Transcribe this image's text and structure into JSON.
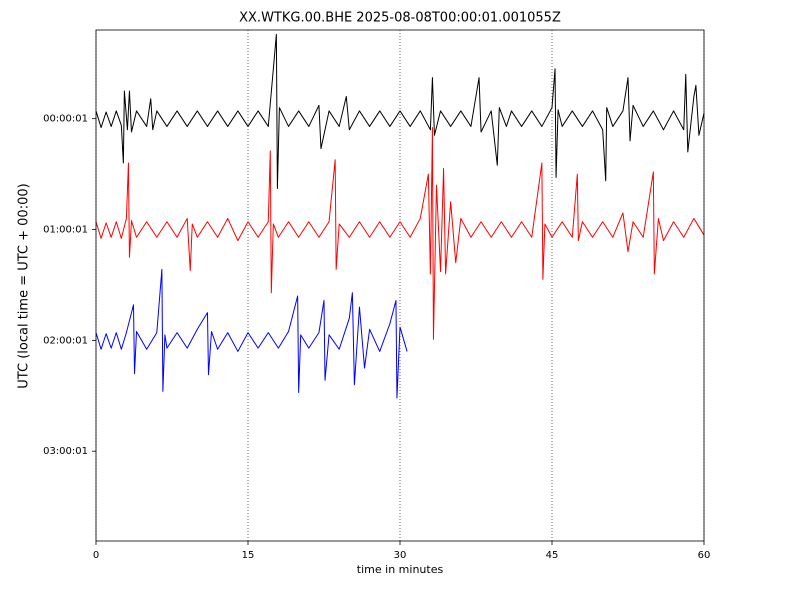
{
  "chart_data": {
    "type": "dayplot",
    "title": "XX.WTKG.00.BHE 2025-08-08T00:00:01.001055Z",
    "x_label": "time in minutes",
    "y_label": "UTC (local time = UTC + 00:00)",
    "xlim": [
      0,
      60
    ],
    "xticks": [
      0,
      15,
      30,
      45,
      60
    ],
    "ylim": [
      3.81,
      -0.8
    ],
    "yticks": [
      {
        "value": 0,
        "label": "00:00:01"
      },
      {
        "value": 1,
        "label": "01:00:01"
      },
      {
        "value": 2,
        "label": "02:00:01"
      },
      {
        "value": 3,
        "label": "03:00:01"
      }
    ],
    "grid": true,
    "series": [
      {
        "color": "#000000",
        "x": [
          0,
          0.5,
          1,
          1.5,
          2,
          2.5,
          2.7,
          2.8,
          3.1,
          3.3,
          3.5,
          4,
          5,
          5.4,
          5.6,
          6,
          7,
          8,
          9,
          10,
          11,
          12,
          13,
          14,
          15,
          16,
          17,
          17.8,
          17.9,
          18.1,
          19,
          20,
          21,
          22,
          22.2,
          23,
          24,
          24.7,
          25,
          26,
          27,
          28,
          29,
          30,
          31,
          32,
          33,
          33.2,
          33.4,
          34,
          35,
          36,
          37,
          37.8,
          38,
          39,
          39.6,
          39.8,
          40.5,
          41,
          42,
          43,
          44,
          45,
          45.3,
          45.4,
          45.6,
          46,
          47,
          48,
          49,
          50,
          50.3,
          50.4,
          51,
          52,
          52.5,
          52.7,
          53,
          54,
          55,
          56,
          57,
          58,
          58.2,
          58.4,
          59,
          59.2,
          59.5,
          60
        ],
        "values": [
          -0.07,
          0.08,
          -0.06,
          0.07,
          -0.07,
          0.06,
          0.4,
          -0.25,
          0.1,
          -0.25,
          0.12,
          -0.07,
          0.07,
          -0.18,
          0.1,
          -0.07,
          0.07,
          -0.07,
          0.07,
          -0.07,
          0.07,
          -0.07,
          0.07,
          -0.07,
          0.07,
          -0.07,
          0.07,
          -0.76,
          0.63,
          -0.1,
          0.07,
          -0.07,
          0.07,
          -0.12,
          0.27,
          -0.07,
          0.07,
          -0.2,
          0.1,
          -0.07,
          0.07,
          -0.07,
          0.07,
          -0.07,
          0.07,
          -0.07,
          0.1,
          -0.37,
          0.15,
          -0.07,
          0.07,
          -0.07,
          0.07,
          -0.37,
          0.12,
          -0.07,
          0.42,
          -0.1,
          0.07,
          -0.07,
          0.07,
          -0.07,
          0.07,
          -0.1,
          -0.45,
          0.53,
          -0.08,
          0.07,
          -0.07,
          0.07,
          -0.07,
          0.1,
          0.56,
          -0.1,
          0.07,
          -0.07,
          -0.37,
          0.2,
          -0.12,
          0.07,
          -0.07,
          0.1,
          -0.07,
          0.1,
          -0.4,
          0.3,
          -0.2,
          -0.3,
          0.15,
          -0.05
        ]
      },
      {
        "color": "#ff0000",
        "x": [
          0,
          0.5,
          1,
          1.5,
          2,
          2.5,
          3,
          3.2,
          3.3,
          3.5,
          4,
          5,
          6,
          7,
          8,
          9,
          9.3,
          9.5,
          10,
          11,
          12,
          13,
          14,
          15,
          16,
          17,
          17.2,
          17.3,
          17.5,
          18,
          19,
          20,
          21,
          22,
          23,
          23.6,
          23.7,
          24,
          25,
          26,
          27,
          28,
          29,
          30,
          31,
          32,
          32.8,
          33,
          33.2,
          33.3,
          33.6,
          34,
          34.3,
          34.5,
          35,
          35.5,
          36,
          37,
          38,
          39,
          40,
          41,
          42,
          43,
          44,
          44.1,
          44.3,
          45,
          46,
          47,
          47.5,
          47.6,
          48,
          49,
          50,
          51,
          52,
          52.5,
          53,
          54,
          55,
          55.1,
          55.5,
          56,
          57,
          58,
          59,
          60
        ],
        "values": [
          0.93,
          1.08,
          0.94,
          1.07,
          0.93,
          1.08,
          0.9,
          0.4,
          1.25,
          0.92,
          1.07,
          0.93,
          1.07,
          0.93,
          1.07,
          0.9,
          1.37,
          0.95,
          1.07,
          0.93,
          1.07,
          0.9,
          1.1,
          0.93,
          1.07,
          0.93,
          0.29,
          1.57,
          0.95,
          1.07,
          0.93,
          1.07,
          0.93,
          1.07,
          0.93,
          0.37,
          1.36,
          0.95,
          1.07,
          0.93,
          1.07,
          0.93,
          1.07,
          0.93,
          1.07,
          0.9,
          0.5,
          1.4,
          0.08,
          1.99,
          0.6,
          1.38,
          0.45,
          1.4,
          0.75,
          1.3,
          0.9,
          1.07,
          0.93,
          1.07,
          0.93,
          1.07,
          0.93,
          1.07,
          0.4,
          1.45,
          0.95,
          1.07,
          0.93,
          1.07,
          0.5,
          1.1,
          0.93,
          1.07,
          0.93,
          1.07,
          0.85,
          1.2,
          0.93,
          1.07,
          0.48,
          1.4,
          0.9,
          1.1,
          0.93,
          1.07,
          0.9,
          1.05
        ]
      },
      {
        "color": "#0000ff",
        "x": [
          0,
          0.5,
          1,
          1.5,
          2,
          2.5,
          3,
          3.7,
          3.8,
          4,
          5,
          6,
          6.5,
          6.6,
          6.8,
          7,
          8,
          9,
          10,
          11,
          11.1,
          11.4,
          12,
          13,
          14,
          15,
          16,
          17,
          18,
          19,
          19.9,
          20,
          20.2,
          21,
          22,
          22.5,
          22.6,
          23,
          24,
          25,
          25.3,
          25.5,
          26,
          26.5,
          27,
          28,
          29,
          29.6,
          29.7,
          30,
          30.7
        ],
        "values": [
          1.93,
          2.08,
          1.94,
          2.07,
          1.93,
          2.08,
          1.93,
          1.68,
          2.3,
          1.92,
          2.08,
          1.93,
          1.36,
          2.46,
          1.95,
          2.07,
          1.93,
          2.07,
          1.9,
          1.75,
          2.31,
          1.92,
          2.08,
          1.93,
          2.1,
          1.93,
          2.07,
          1.93,
          2.07,
          1.92,
          1.6,
          2.47,
          1.95,
          2.07,
          1.93,
          1.64,
          2.36,
          1.95,
          2.08,
          1.8,
          1.57,
          2.4,
          1.7,
          2.25,
          1.9,
          2.1,
          1.85,
          1.64,
          2.52,
          1.88,
          2.1
        ]
      }
    ]
  }
}
